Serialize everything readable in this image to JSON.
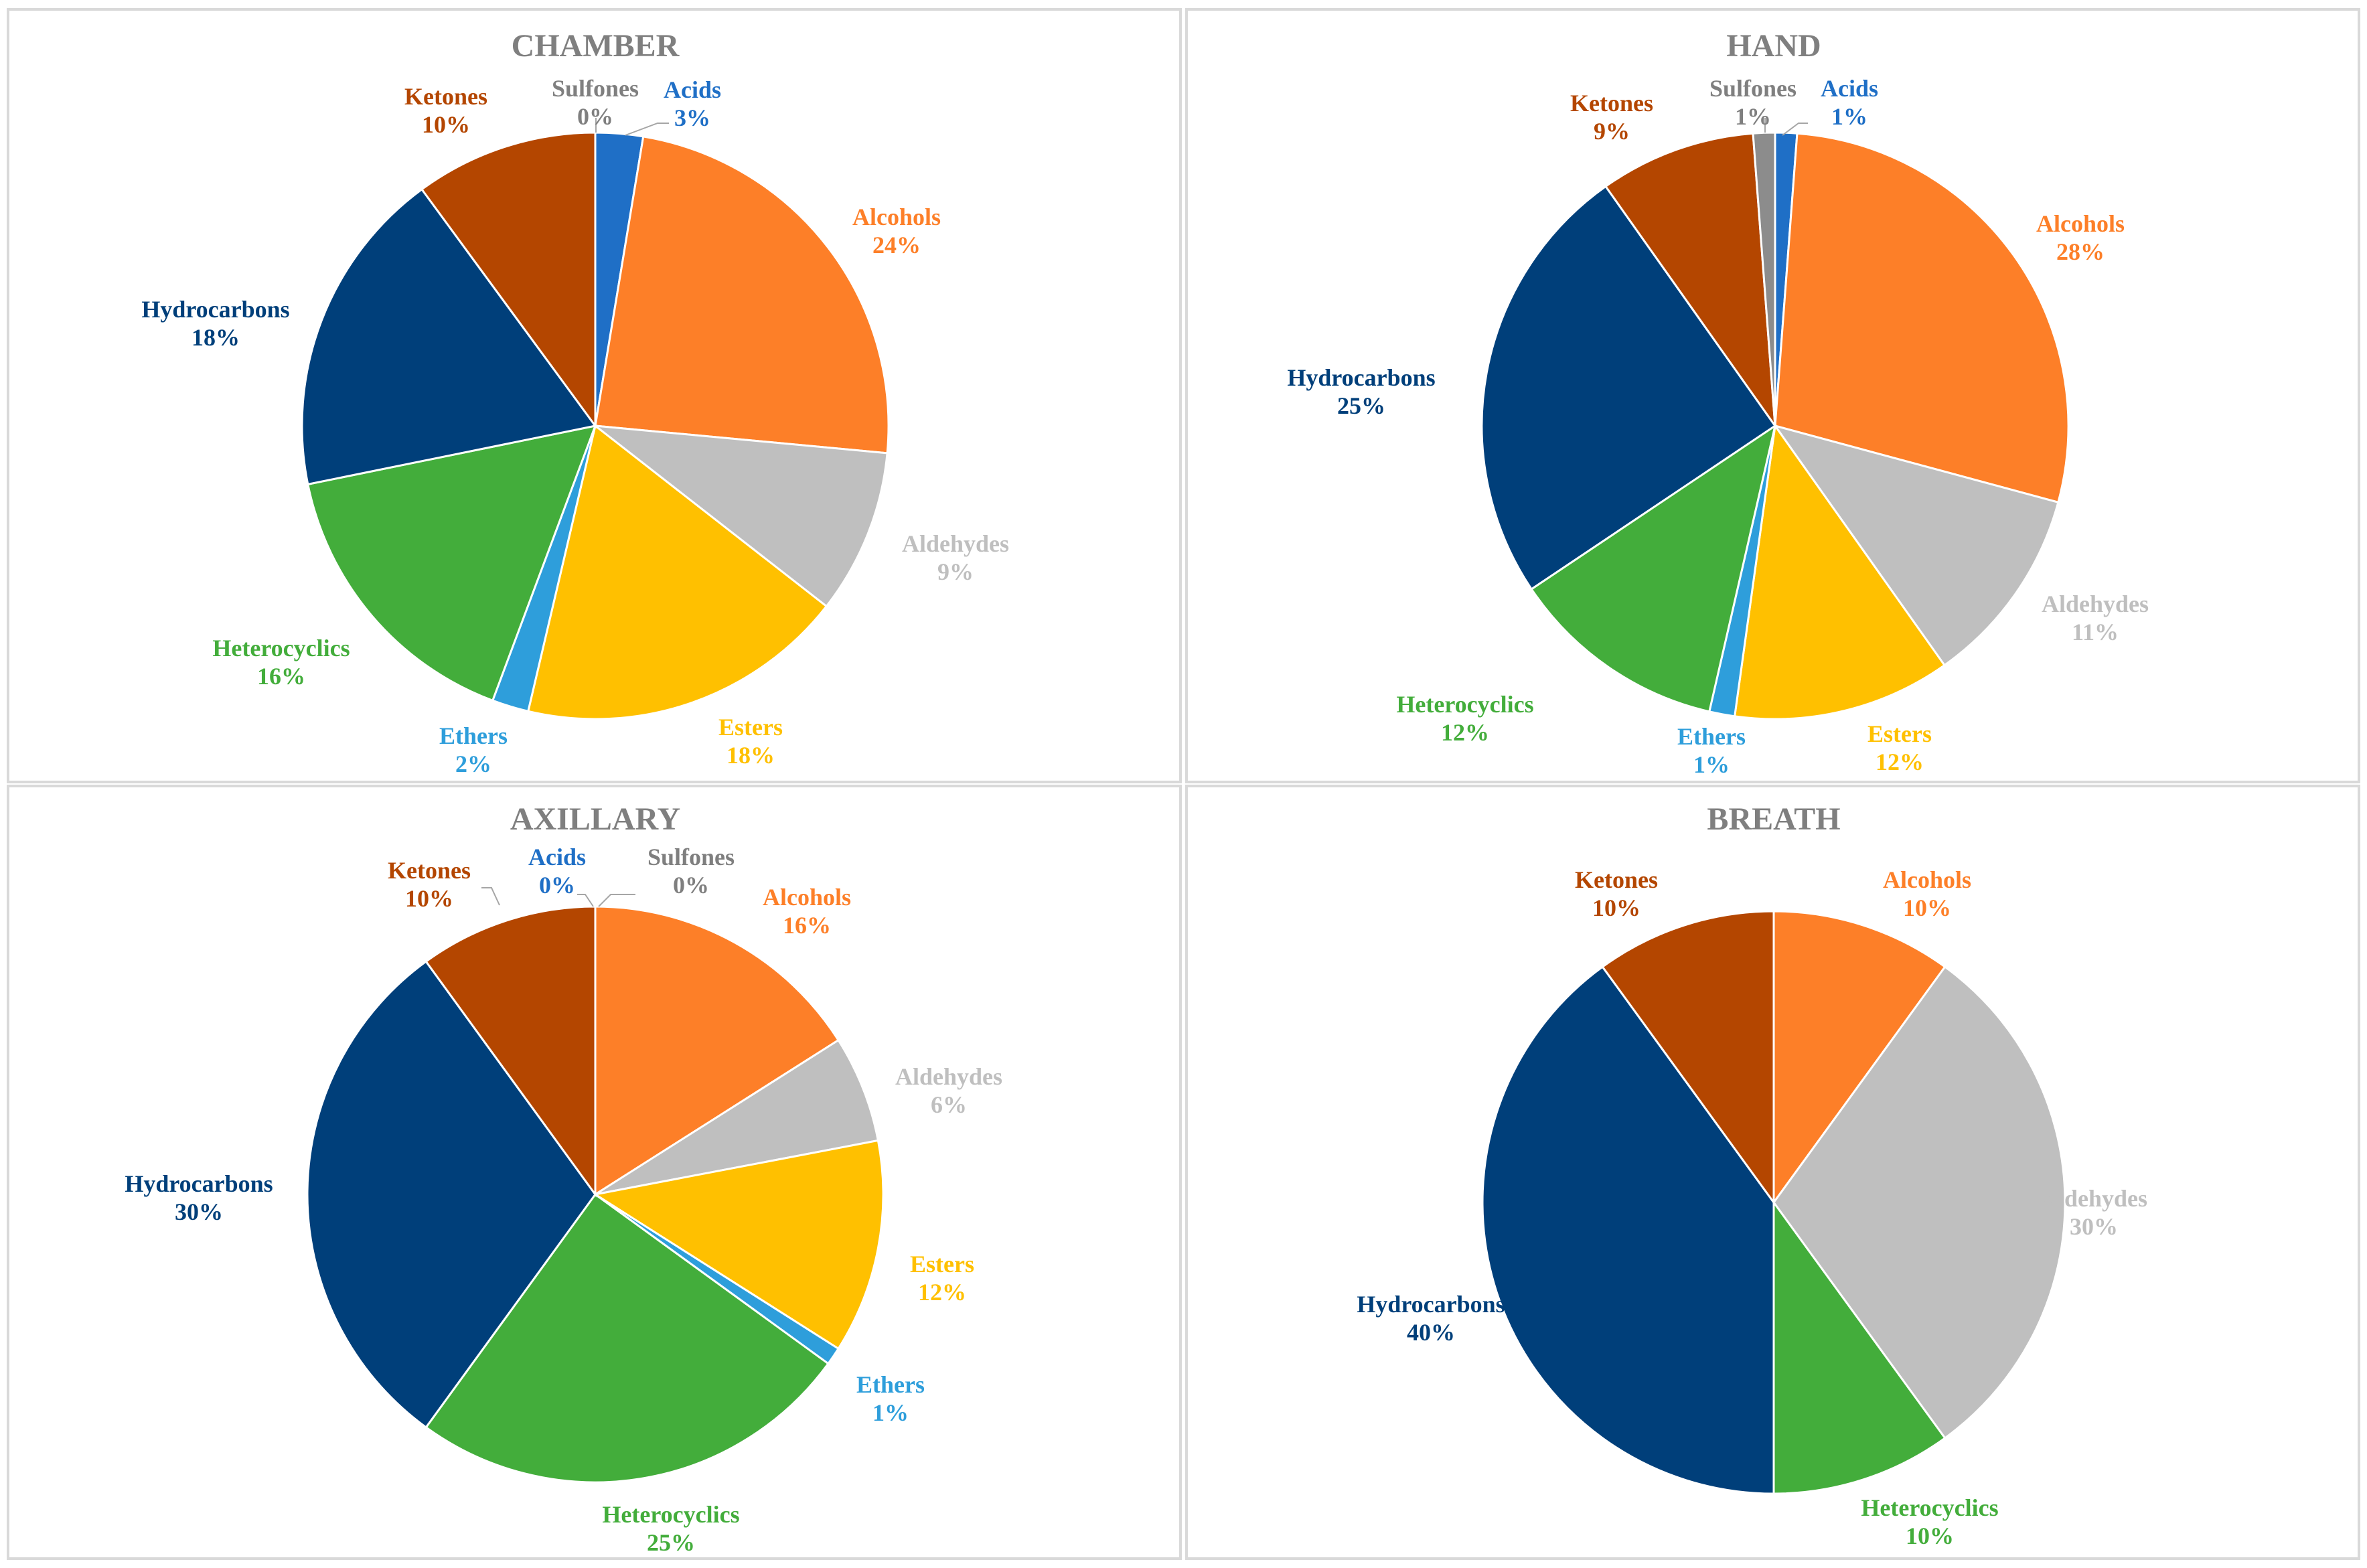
{
  "colors": {
    "Acids": "#1f6fc6",
    "Alcohols": "#fd7f28",
    "Aldehydes": "#bfbfbf",
    "Esters": "#ffc000",
    "Ethers": "#2e9edb",
    "Heterocyclics": "#43ad3b",
    "Hydrocarbons": "#003f7a",
    "Ketones": "#b44600",
    "Sulfones": "#8c8c8c"
  },
  "label_colors": {
    "Acids": "#1f6fc6",
    "Alcohols": "#fd7f28",
    "Aldehydes": "#bfbfbf",
    "Esters": "#ffc000",
    "Ethers": "#2e9edb",
    "Heterocyclics": "#43ad3b",
    "Hydrocarbons": "#003f7a",
    "Ketones": "#b44600",
    "Sulfones": "#7f7f7f"
  },
  "chart_data": [
    {
      "type": "pie",
      "title": "CHAMBER",
      "slices": [
        {
          "name": "Acids",
          "value": 2.6,
          "label": "3%"
        },
        {
          "name": "Alcohols",
          "value": 23.7,
          "label": "24%"
        },
        {
          "name": "Aldehydes",
          "value": 9.0,
          "label": "9%"
        },
        {
          "name": "Esters",
          "value": 18.0,
          "label": "18%"
        },
        {
          "name": "Ethers",
          "value": 2.0,
          "label": "2%"
        },
        {
          "name": "Heterocyclics",
          "value": 16.0,
          "label": "16%"
        },
        {
          "name": "Hydrocarbons",
          "value": 18.0,
          "label": "18%"
        },
        {
          "name": "Ketones",
          "value": 10.0,
          "label": "10%"
        },
        {
          "name": "Sulfones",
          "value": 0.0,
          "label": "0%"
        }
      ]
    },
    {
      "type": "pie",
      "title": "HAND",
      "slices": [
        {
          "name": "Acids",
          "value": 1.2,
          "label": "1%"
        },
        {
          "name": "Alcohols",
          "value": 28.0,
          "label": "28%"
        },
        {
          "name": "Aldehydes",
          "value": 11.0,
          "label": "11%"
        },
        {
          "name": "Esters",
          "value": 12.0,
          "label": "12%"
        },
        {
          "name": "Ethers",
          "value": 1.4,
          "label": "1%"
        },
        {
          "name": "Heterocyclics",
          "value": 12.0,
          "label": "12%"
        },
        {
          "name": "Hydrocarbons",
          "value": 24.6,
          "label": "25%"
        },
        {
          "name": "Ketones",
          "value": 8.6,
          "label": "9%"
        },
        {
          "name": "Sulfones",
          "value": 1.2,
          "label": "1%"
        }
      ]
    },
    {
      "type": "pie",
      "title": "AXILLARY",
      "slices": [
        {
          "name": "Acids",
          "value": 0.0,
          "label": "0%"
        },
        {
          "name": "Alcohols",
          "value": 16.0,
          "label": "16%"
        },
        {
          "name": "Aldehydes",
          "value": 6.0,
          "label": "6%"
        },
        {
          "name": "Esters",
          "value": 12.0,
          "label": "12%"
        },
        {
          "name": "Ethers",
          "value": 1.0,
          "label": "1%"
        },
        {
          "name": "Heterocyclics",
          "value": 25.0,
          "label": "25%"
        },
        {
          "name": "Hydrocarbons",
          "value": 30.0,
          "label": "30%"
        },
        {
          "name": "Ketones",
          "value": 10.0,
          "label": "10%"
        },
        {
          "name": "Sulfones",
          "value": 0.0,
          "label": "0%"
        }
      ]
    },
    {
      "type": "pie",
      "title": "BREATH",
      "slices": [
        {
          "name": "Alcohols",
          "value": 10.0,
          "label": "10%"
        },
        {
          "name": "Aldehydes",
          "value": 30.0,
          "label": "30%"
        },
        {
          "name": "Heterocyclics",
          "value": 10.0,
          "label": "10%"
        },
        {
          "name": "Hydrocarbons",
          "value": 40.0,
          "label": "40%"
        },
        {
          "name": "Ketones",
          "value": 10.0,
          "label": "10%"
        }
      ]
    }
  ]
}
